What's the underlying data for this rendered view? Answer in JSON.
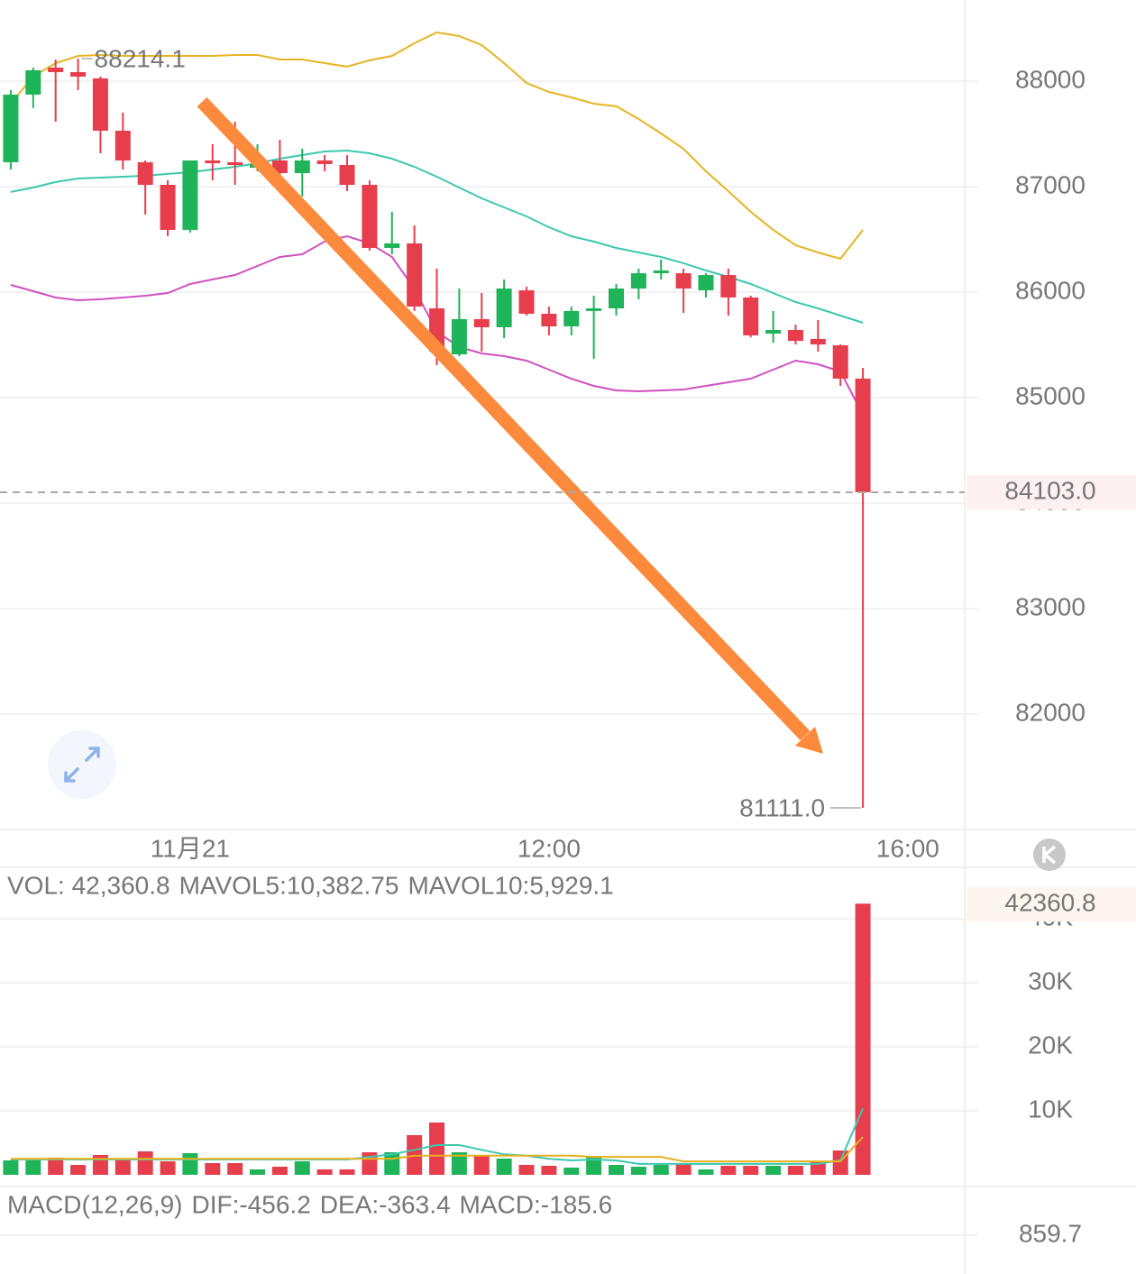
{
  "chart_data": [
    {
      "type": "candlestick",
      "categories": [
        null,
        null,
        null,
        null,
        null,
        null,
        null,
        null,
        null,
        null,
        null,
        null,
        null,
        null,
        null,
        null,
        null,
        null,
        null,
        null,
        null,
        null,
        null,
        null,
        null,
        null,
        null,
        null,
        null,
        null,
        null,
        null,
        null,
        null,
        null,
        null,
        null,
        null,
        null
      ],
      "open": [
        87231,
        87872,
        88128,
        88085,
        88026,
        87530,
        87231,
        87017,
        86590,
        87248,
        87231,
        87179,
        87248,
        87128,
        87248,
        87205,
        87017,
        86419,
        86462,
        85846,
        85410,
        85744,
        85667,
        86017,
        85795,
        85675,
        85821,
        85846,
        86034,
        86179,
        86179,
        86017,
        86162,
        85949,
        85607,
        85641,
        85556,
        85496,
        85180
      ],
      "high": [
        87915,
        88128,
        88205,
        88214.1,
        88043,
        87701,
        87248,
        87060,
        87248,
        87402,
        87615,
        87402,
        87444,
        87359,
        87299,
        87299,
        87060,
        86761,
        86632,
        86222,
        86034,
        85991,
        86120,
        86051,
        85863,
        85863,
        85966,
        86077,
        86222,
        86308,
        86222,
        86179,
        86222,
        85966,
        85821,
        85692,
        85735,
        85504,
        85282
      ],
      "low": [
        87162,
        87744,
        87615,
        87915,
        87316,
        87162,
        86735,
        86530,
        86564,
        87060,
        87017,
        87145,
        87060,
        86906,
        87145,
        86957,
        86393,
        86359,
        85821,
        85308,
        85393,
        85436,
        85564,
        85778,
        85590,
        85590,
        85368,
        85778,
        85932,
        86120,
        85803,
        85949,
        85778,
        85573,
        85521,
        85504,
        85436,
        85111,
        81111
      ],
      "close": [
        87872,
        88103,
        88085,
        88043,
        87530,
        87248,
        87017,
        86590,
        87248,
        87222,
        87205,
        87214,
        87128,
        87248,
        87214,
        87017,
        86419,
        86462,
        85863,
        85436,
        85744,
        85667,
        86034,
        85795,
        85675,
        85821,
        85846,
        86034,
        86179,
        86205,
        86034,
        86162,
        85949,
        85590,
        85641,
        85538,
        85504,
        85180,
        84103
      ],
      "up_color": "#1fb35a",
      "down_color": "#e63e4c",
      "lines": [
        {
          "color": "#e6b422",
          "values": [
            87786,
            88043,
            88171,
            88239,
            88248,
            88239,
            88239,
            88239,
            88239,
            88239,
            88248,
            88248,
            88205,
            88205,
            88171,
            88137,
            88197,
            88239,
            88359,
            88462,
            88427,
            88342,
            88171,
            87983,
            87897,
            87846,
            87786,
            87761,
            87641,
            87504,
            87359,
            87145,
            86957,
            86761,
            86590,
            86444,
            86376,
            86316,
            86590
          ]
        },
        {
          "color": "#3cc8b0",
          "values": [
            86949,
            86991,
            87043,
            87077,
            87085,
            87094,
            87103,
            87120,
            87137,
            87162,
            87188,
            87222,
            87265,
            87299,
            87333,
            87342,
            87316,
            87265,
            87188,
            87094,
            86991,
            86889,
            86803,
            86718,
            86615,
            86530,
            86479,
            86419,
            86376,
            86333,
            86274,
            86205,
            86145,
            86077,
            85991,
            85906,
            85846,
            85778,
            85709
          ]
        },
        {
          "color": "#d050c0",
          "values": [
            86068,
            86009,
            85949,
            85923,
            85932,
            85949,
            85966,
            85991,
            86077,
            86120,
            86162,
            86248,
            86333,
            86359,
            86479,
            86530,
            86462,
            86333,
            86034,
            85624,
            85479,
            85419,
            85393,
            85350,
            85265,
            85179,
            85111,
            85068,
            85060,
            85068,
            85077,
            85111,
            85145,
            85179,
            85265,
            85350,
            85316,
            85248,
            84838
          ]
        }
      ],
      "xlim": [
        -0.48,
        42.54
      ],
      "xticks": [
        {
          "value": 8,
          "label": "11月21"
        },
        {
          "value": 24,
          "label": "12:00"
        },
        {
          "value": 40,
          "label": "16:00"
        }
      ],
      "ylim": [
        80906,
        88769
      ],
      "yticks": [
        82000,
        83000,
        84000,
        85000,
        86000,
        87000,
        88000
      ],
      "grid": true,
      "price_line": {
        "value": 84103,
        "label": "84103.0"
      },
      "min_marker": {
        "value": 81111,
        "label": "81111.0"
      }
    },
    {
      "type": "bar",
      "legend": [
        {
          "text": "VOL: 42,360.8",
          "color": "#8a8a8a"
        },
        {
          "text": "MAVOL5:10,382.75",
          "color": "#20b8a0"
        },
        {
          "text": "MAVOL10:5,929.1",
          "color": "#e6a817"
        }
      ],
      "values": [
        2254,
        2254,
        2676,
        1549,
        3099,
        2254,
        3662,
        2113,
        3380,
        1831,
        1831,
        845,
        1268,
        2113,
        845,
        845,
        3521,
        3521,
        6197,
        8169,
        3521,
        3099,
        2535,
        1549,
        1408,
        1127,
        2958,
        1549,
        1268,
        1549,
        1831,
        845,
        1408,
        1408,
        1408,
        1408,
        2113,
        3803,
        42360.8
      ],
      "lines": [
        {
          "color": "#3cc8b0",
          "values": [
            2400,
            2400,
            2400,
            2400,
            2400,
            2400,
            2400,
            2400,
            2400,
            2400,
            2400,
            2400,
            2400,
            2400,
            2400,
            2400,
            2800,
            3200,
            3900,
            4650,
            4650,
            3900,
            3200,
            3000,
            2500,
            2250,
            2400,
            2250,
            1700,
            1700,
            1700,
            1700,
            1700,
            1700,
            1700,
            1700,
            1700,
            2250,
            10382.75
          ]
        },
        {
          "color": "#e8b020",
          "values": [
            2500,
            2500,
            2500,
            2500,
            2500,
            2500,
            2500,
            2500,
            2500,
            2500,
            2500,
            2500,
            2500,
            2500,
            2500,
            2500,
            2500,
            2500,
            3000,
            3000,
            3000,
            3000,
            3000,
            3000,
            3000,
            3000,
            2800,
            2800,
            2800,
            2800,
            2100,
            2100,
            2100,
            2100,
            2100,
            2100,
            2100,
            2100,
            5929.1
          ]
        }
      ],
      "ylim": [
        0,
        43380
      ],
      "yticks": [
        {
          "value": 10000,
          "label": "10K"
        },
        {
          "value": 20000,
          "label": "20K"
        },
        {
          "value": 30000,
          "label": "30K"
        },
        {
          "value": 40000,
          "label": "40K"
        }
      ],
      "grid": true
    },
    {
      "type": "macd",
      "legend": [
        {
          "text": "MACD(12,26,9)",
          "color": "#8a8a8a"
        },
        {
          "text": "DIF:-456.2",
          "color": "#20b8a0"
        },
        {
          "text": "DEA:-363.4",
          "color": "#e6a817"
        },
        {
          "text": "MACD:-185.6",
          "color": "#c848c0"
        }
      ],
      "yticks": [
        859.7
      ]
    }
  ]
}
